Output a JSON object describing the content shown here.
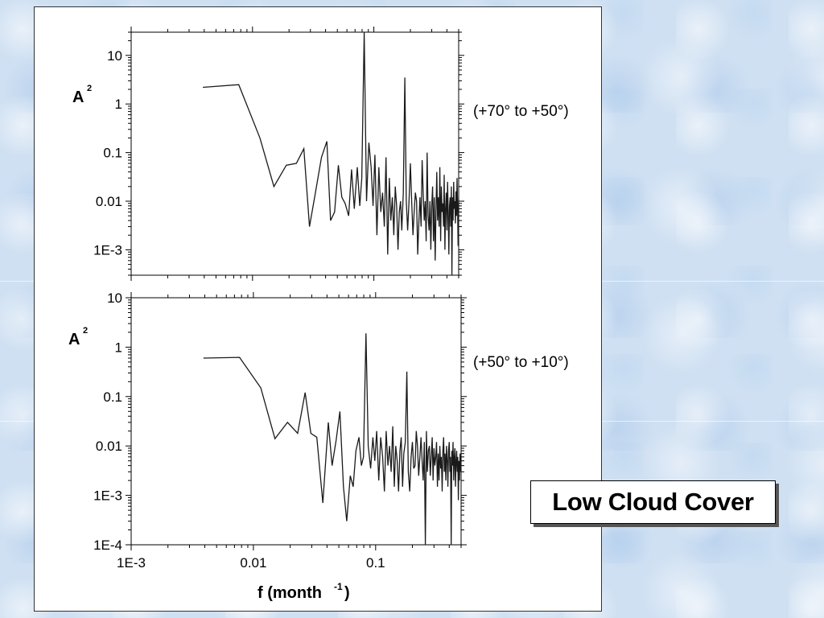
{
  "slide": {
    "caption": "Low Cloud Cover",
    "background_color": "#cfe0f2"
  },
  "chart_data": [
    {
      "type": "line",
      "panel_label": "(+70° to +50°)",
      "ylabel": "A",
      "ylabel_superscript": "2",
      "xlabel": "",
      "x_scale": "log",
      "y_scale": "log",
      "xlim": [
        0.001,
        0.5
      ],
      "ylim": [
        0.0003,
        30
      ],
      "y_ticks": [
        10,
        1,
        0.1,
        0.01,
        0.001
      ],
      "y_tick_labels": [
        "10",
        "1",
        "0.1",
        "0.01",
        "1E-3"
      ],
      "grid": false,
      "line_color": "#1a1a1a",
      "series": [
        {
          "x": [
            0.0039,
            0.0077,
            0.0115,
            0.015,
            0.019,
            0.023,
            0.0265,
            0.0295,
            0.033,
            0.037,
            0.041,
            0.044,
            0.0475,
            0.051,
            0.0545,
            0.058,
            0.062,
            0.0655,
            0.069,
            0.073,
            0.0765,
            0.0795,
            0.0833,
            0.087,
            0.091,
            0.095,
            0.0985,
            0.102,
            0.106,
            0.11,
            0.114,
            0.118,
            0.122,
            0.126,
            0.13,
            0.134,
            0.138,
            0.142,
            0.146,
            0.15,
            0.154,
            0.158,
            0.162,
            0.166,
            0.17,
            0.175,
            0.18,
            0.185,
            0.19,
            0.195,
            0.2,
            0.205,
            0.21,
            0.215,
            0.22,
            0.225,
            0.23,
            0.235,
            0.24,
            0.245,
            0.25,
            0.255,
            0.26,
            0.265,
            0.27,
            0.275,
            0.28,
            0.285,
            0.29,
            0.295,
            0.3,
            0.305,
            0.31,
            0.315,
            0.32,
            0.325,
            0.33,
            0.335,
            0.34,
            0.345,
            0.35,
            0.355,
            0.36,
            0.365,
            0.37,
            0.375,
            0.38,
            0.385,
            0.39,
            0.395,
            0.4,
            0.405,
            0.41,
            0.415,
            0.42,
            0.425,
            0.43,
            0.435,
            0.44,
            0.445,
            0.45,
            0.455,
            0.46,
            0.465,
            0.47,
            0.475,
            0.48,
            0.485,
            0.49,
            0.495,
            0.5
          ],
          "y": [
            2.2,
            2.5,
            0.2,
            0.02,
            0.055,
            0.06,
            0.12,
            0.003,
            0.015,
            0.08,
            0.17,
            0.004,
            0.006,
            0.055,
            0.012,
            0.009,
            0.005,
            0.045,
            0.007,
            0.05,
            0.008,
            0.03,
            30,
            0.01,
            0.16,
            0.05,
            0.008,
            0.09,
            0.002,
            0.05,
            0.006,
            0.015,
            0.003,
            0.08,
            0.0008,
            0.03,
            0.004,
            0.012,
            0.002,
            0.02,
            0.008,
            0.001,
            0.006,
            0.01,
            0.0025,
            0.015,
            3.5,
            0.01,
            0.0025,
            0.01,
            0.06,
            0.01,
            0.002,
            0.006,
            0.015,
            0.01,
            0.0008,
            0.004,
            0.012,
            0.003,
            0.07,
            0.015,
            0.004,
            0.01,
            0.0015,
            0.1,
            0.005,
            0.0025,
            0.01,
            0.001,
            0.008,
            0.02,
            0.0015,
            0.012,
            0.0006,
            0.006,
            0.04,
            0.004,
            0.012,
            0.003,
            0.05,
            0.0015,
            0.02,
            0.006,
            0.009,
            0.003,
            0.035,
            0.001,
            0.007,
            0.015,
            0.0025,
            0.025,
            0.006,
            0.0008,
            0.008,
            0.012,
            0.003,
            0.02,
            0.0003,
            0.012,
            0.004,
            0.025,
            0.007,
            0.01,
            0.0035,
            0.016,
            0.005,
            0.03,
            0.006,
            0.0012,
            0.012
          ]
        }
      ]
    },
    {
      "type": "line",
      "panel_label": "(+50° to +10°)",
      "ylabel": "A",
      "ylabel_superscript": "2",
      "xlabel": "f (month",
      "xlabel_superscript": "-1",
      "xlabel_suffix": ")",
      "x_scale": "log",
      "y_scale": "log",
      "xlim": [
        0.001,
        0.5
      ],
      "ylim": [
        0.0001,
        10
      ],
      "x_ticks": [
        0.001,
        0.01,
        0.1
      ],
      "x_tick_labels": [
        "1E-3",
        "0.01",
        "0.1"
      ],
      "y_ticks": [
        10,
        1,
        0.1,
        0.01,
        0.001,
        0.0001
      ],
      "y_tick_labels": [
        "10",
        "1",
        "0.1",
        "0.01",
        "1E-3",
        "1E-4"
      ],
      "grid": false,
      "line_color": "#1a1a1a",
      "series": [
        {
          "x": [
            0.0039,
            0.0077,
            0.0115,
            0.015,
            0.019,
            0.023,
            0.0265,
            0.0295,
            0.033,
            0.037,
            0.041,
            0.044,
            0.0475,
            0.051,
            0.0545,
            0.058,
            0.062,
            0.0655,
            0.069,
            0.073,
            0.0765,
            0.0795,
            0.0833,
            0.087,
            0.091,
            0.095,
            0.0985,
            0.102,
            0.106,
            0.11,
            0.114,
            0.118,
            0.122,
            0.126,
            0.13,
            0.134,
            0.138,
            0.142,
            0.146,
            0.15,
            0.154,
            0.158,
            0.162,
            0.166,
            0.17,
            0.175,
            0.18,
            0.185,
            0.19,
            0.195,
            0.2,
            0.205,
            0.21,
            0.215,
            0.22,
            0.225,
            0.23,
            0.235,
            0.24,
            0.245,
            0.25,
            0.255,
            0.26,
            0.265,
            0.27,
            0.275,
            0.28,
            0.285,
            0.29,
            0.295,
            0.3,
            0.305,
            0.31,
            0.315,
            0.32,
            0.325,
            0.33,
            0.335,
            0.34,
            0.345,
            0.35,
            0.355,
            0.36,
            0.365,
            0.37,
            0.375,
            0.38,
            0.385,
            0.39,
            0.395,
            0.4,
            0.405,
            0.41,
            0.415,
            0.42,
            0.425,
            0.43,
            0.435,
            0.44,
            0.445,
            0.45,
            0.455,
            0.46,
            0.465,
            0.47,
            0.475,
            0.48,
            0.485,
            0.49,
            0.495,
            0.5
          ],
          "y": [
            0.6,
            0.62,
            0.15,
            0.014,
            0.03,
            0.018,
            0.12,
            0.018,
            0.015,
            0.0007,
            0.03,
            0.004,
            0.013,
            0.05,
            0.0015,
            0.0003,
            0.0025,
            0.0015,
            0.008,
            0.015,
            0.004,
            0.006,
            1.9,
            0.01,
            0.0035,
            0.015,
            0.005,
            0.02,
            0.002,
            0.015,
            0.006,
            0.0012,
            0.02,
            0.004,
            0.01,
            0.003,
            0.025,
            0.0015,
            0.01,
            0.005,
            0.0012,
            0.008,
            0.015,
            0.0015,
            0.007,
            0.012,
            0.32,
            0.003,
            0.0012,
            0.006,
            0.012,
            0.0035,
            0.004,
            0.02,
            0.01,
            0.0025,
            0.006,
            0.015,
            0.005,
            0.002,
            0.012,
            0.0001,
            0.02,
            0.003,
            0.008,
            0.01,
            0.0025,
            0.006,
            0.015,
            0.002,
            0.009,
            0.004,
            0.006,
            0.012,
            0.0015,
            0.007,
            0.002,
            0.01,
            0.0035,
            0.006,
            0.0012,
            0.008,
            0.015,
            0.003,
            0.007,
            0.002,
            0.01,
            0.005,
            0.0015,
            0.008,
            0.012,
            0.003,
            0.006,
            0.0001,
            0.008,
            0.004,
            0.012,
            0.002,
            0.006,
            0.009,
            0.0015,
            0.005,
            0.008,
            0.003,
            0.006,
            0.0008,
            0.005,
            0.002,
            0.007,
            0.003,
            0.005
          ]
        }
      ]
    }
  ]
}
